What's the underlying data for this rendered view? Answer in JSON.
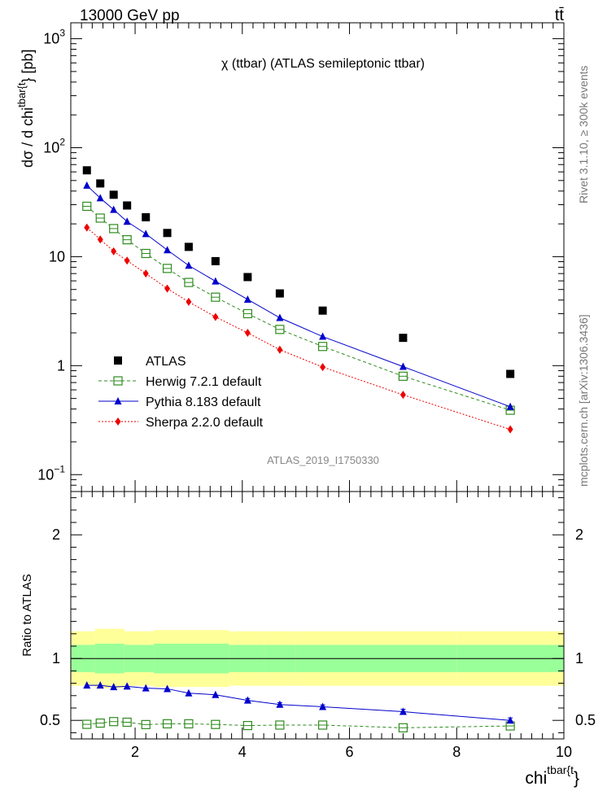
{
  "header": {
    "beam": "13000 GeV pp",
    "process": "tt̄",
    "rivet": "Rivet 3.1.10, ≥ 300k events",
    "source": "mcplots.cern.ch [arXiv:1306.3436]",
    "analysis": "ATLAS_2019_I1750330"
  },
  "colors": {
    "atlas": "#000000",
    "herwig": "#2e8b1e",
    "pythia": "#0000cc",
    "sherpa": "#ee0000",
    "band_outer": "#ffff99",
    "band_inner": "#99ff99"
  },
  "chart_data": [
    {
      "type": "scatter",
      "scale": "log-y",
      "title": "χ (ttbar) (ATLAS semileptonic ttbar)",
      "ylabel_main": "dσ / d chi",
      "ylabel_sup": "tbar{t",
      "ylabel_tail": "} [pb]",
      "xlim": [
        0.8,
        10
      ],
      "ylim": [
        0.07,
        1400
      ],
      "yticks": [
        {
          "v": 0.1,
          "base": "10",
          "exp": "−1"
        },
        {
          "v": 1,
          "base": "1",
          "exp": ""
        },
        {
          "v": 10,
          "base": "10",
          "exp": ""
        },
        {
          "v": 100,
          "base": "10",
          "exp": "2"
        },
        {
          "v": 1000,
          "base": "10",
          "exp": "3"
        }
      ],
      "x": [
        1.1,
        1.35,
        1.6,
        1.85,
        2.2,
        2.6,
        3.0,
        3.5,
        4.1,
        4.7,
        5.5,
        7.0,
        9.0
      ],
      "series": [
        {
          "name": "ATLAS",
          "style": "data",
          "values": [
            62,
            47,
            37,
            29.5,
            23,
            16.5,
            12.3,
            9.1,
            6.5,
            4.6,
            3.2,
            1.8,
            0.84
          ]
        },
        {
          "name": "Herwig 7.2.1 default",
          "style": "herwig",
          "values": [
            29,
            22.6,
            18.1,
            14.3,
            10.7,
            7.8,
            5.8,
            4.25,
            3.0,
            2.15,
            1.5,
            0.8,
            0.39
          ]
        },
        {
          "name": "Pythia 8.183 default",
          "style": "pythia",
          "values": [
            45,
            34.5,
            27,
            21,
            16.2,
            11.5,
            8.3,
            5.95,
            4.05,
            2.75,
            1.85,
            0.98,
            0.42
          ]
        },
        {
          "name": "Sherpa 2.2.0 default",
          "style": "sherpa",
          "values": [
            18.5,
            14.4,
            11.2,
            9.2,
            7.0,
            5.1,
            3.85,
            2.8,
            2.0,
            1.4,
            0.97,
            0.54,
            0.26
          ]
        }
      ]
    },
    {
      "type": "line",
      "ylabel": "Ratio to ATLAS",
      "xlabel_main": "chi",
      "xlabel_sup": "tbar{t",
      "xlabel_tail": "}",
      "xlim": [
        0.8,
        10
      ],
      "ylim": [
        0.35,
        2.35
      ],
      "xticks": [
        2,
        4,
        6,
        8,
        10
      ],
      "yticks": [
        0.5,
        1,
        2
      ],
      "x": [
        1.1,
        1.35,
        1.6,
        1.85,
        2.2,
        2.6,
        3.0,
        3.5,
        4.1,
        4.7,
        5.5,
        7.0,
        9.0
      ],
      "band_outer": [
        [
          0.78,
          0.82
        ],
        [
          0.82,
          1.25
        ],
        [
          1.25,
          1.8
        ],
        [
          1.8,
          2.35
        ],
        [
          2.35,
          3.75
        ],
        [
          3.75,
          4.4
        ],
        [
          4.4,
          5.0
        ],
        [
          5.0,
          6.0
        ],
        [
          6.0,
          8.0
        ],
        [
          8.0,
          10.0
        ]
      ],
      "band_inner": [
        0.5,
        1.0,
        1.1,
        1.0,
        1.1,
        1.0,
        1.0,
        1.0,
        1.0,
        1.0
      ],
      "series": [
        {
          "name": "Herwig 7.2.1 default",
          "style": "herwig",
          "values": [
            0.468,
            0.478,
            0.49,
            0.485,
            0.466,
            0.472,
            0.472,
            0.467,
            0.458,
            0.462,
            0.462,
            0.44,
            0.455
          ]
        },
        {
          "name": "Pythia 8.183 default",
          "style": "pythia",
          "values": [
            0.783,
            0.783,
            0.77,
            0.775,
            0.76,
            0.755,
            0.72,
            0.707,
            0.662,
            0.628,
            0.61,
            0.57,
            0.5
          ]
        }
      ]
    }
  ]
}
